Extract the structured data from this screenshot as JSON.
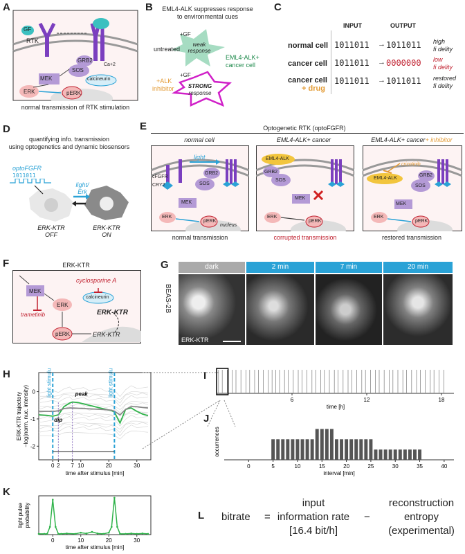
{
  "panels": {
    "A": {
      "letter": "A",
      "caption": "normal transmission of RTK stimulation",
      "labels": {
        "gf": "GF",
        "rtk": "RTK",
        "grb2": "GRB2",
        "sos": "SOS",
        "mek": "MEK",
        "erk": "ERK",
        "perk": "pERK",
        "calcineurin": "calcineurin",
        "ca": "Ca+2"
      }
    },
    "B": {
      "letter": "B",
      "title_line1": "EML4-ALK suppresses response",
      "title_line2": "to environmental cues",
      "untreated": "untreated",
      "plus_gf": "+GF",
      "weak_line1": "weak",
      "weak_line2": "response",
      "strong_line1": "STRONG",
      "strong_line2": "response",
      "cell_line1": "EML4-ALK+",
      "cell_line2": "cancer cell",
      "alk_line1": "+ALK",
      "alk_line2": "inhibitor"
    },
    "C": {
      "letter": "C",
      "input_header": "INPUT",
      "output_header": "OUTPUT",
      "rows": [
        {
          "label": "normal cell",
          "input": "1011011",
          "output": "1011011",
          "desc_line1": "high",
          "desc_line2": "fi delity"
        },
        {
          "label": "cancer cell",
          "input": "1011011",
          "output": "0000000",
          "desc_line1": "low",
          "desc_line2": "fi delity"
        },
        {
          "label": "cancer cell",
          "label2": "+ drug",
          "input": "1011011",
          "output": "1011011",
          "desc_line1": "restored",
          "desc_line2": "fi delity"
        }
      ]
    },
    "D": {
      "letter": "D",
      "title_line1": "quantifying info. transmission",
      "title_line2": "using optogenetics and dynamic biosensors",
      "opto": "optoFGFR",
      "bits": "1011011",
      "light_line1": "light/",
      "light_line2": "Erk",
      "off_line1": "ERK-KTR",
      "off_line2": "OFF",
      "on_line1": "ERK-KTR",
      "on_line2": "ON"
    },
    "E": {
      "letter": "E",
      "title": "Optogenetic RTK (optoFGFR)",
      "subpanels": [
        {
          "title": "normal cell",
          "caption": "normal transmission",
          "cfgfr": "cFGFR",
          "cry2": "CRY2",
          "light": "light",
          "grb2": "GRB2",
          "sos": "SOS",
          "mek": "MEK",
          "erk": "ERK",
          "perk": "pERK",
          "nucleus": "nucleus"
        },
        {
          "title": "EML4-ALK+ cancer",
          "caption": "corrupted transmission",
          "eml": "EML4-ALK",
          "grb2": "GRB2",
          "sos": "SOS",
          "mek": "MEK",
          "erk": "ERK",
          "perk": "pERK"
        },
        {
          "title_a": "EML4-ALK+ cancer",
          "title_b": "+ inhibitor",
          "caption": "restored transmission",
          "drug": "crizotinib",
          "eml": "EML4-ALK",
          "grb2": "GRB2",
          "sos": "SOS",
          "mek": "MEK",
          "erk": "ERK",
          "perk": "pERK"
        }
      ]
    },
    "F": {
      "letter": "F",
      "title": "ERK-KTR",
      "mek": "MEK",
      "erk": "ERK",
      "perk": "pERK",
      "calcineurin": "calcineurin",
      "cyclo": "cyclosporine A",
      "trametinib": "trametinib",
      "ktr1": "ERK-KTR",
      "ktr2": "ERK-KTR"
    },
    "G": {
      "letter": "G",
      "headers": [
        "dark",
        "2 min",
        "7 min",
        "20 min"
      ],
      "side": "BEAS-2B",
      "inset": "ERK-KTR"
    },
    "H": {
      "letter": "H",
      "ylabel_line1": "ERK-KTR trajectory",
      "ylabel_line2": "−log(norm. nuc. intensity)",
      "xlabel": "time after stimulus [min]",
      "stim1": "light stimulus",
      "stim2": "light stimulus",
      "peak": "peak",
      "dip": "dip"
    },
    "I": {
      "letter": "I",
      "xlabel": "time [h]"
    },
    "J": {
      "letter": "J",
      "ylabel": "occurrences",
      "xlabel": "interval [min]"
    },
    "K": {
      "letter": "K",
      "ylabel_line1": "light pulse",
      "ylabel_line2": "probability",
      "xlabel": "time after stimulus [min]"
    },
    "L": {
      "letter": "L",
      "bitrate": "bitrate",
      "equals": "=",
      "minus": "−",
      "term1_line1": "input",
      "term1_line2": "information rate",
      "term1_line3": "[16.4 bit/h]",
      "term2_line1": "reconstruction",
      "term2_line2": "entropy",
      "term2_line3": "(experimental)"
    }
  },
  "colors": {
    "accent_blue": "#2aa2d6",
    "accent_green": "#2fb34a",
    "accent_red": "#c0202f",
    "purple": "#7b3fbf",
    "magenta": "#d020c8"
  },
  "chart_data": [
    {
      "type": "line",
      "panel": "H",
      "x": [
        -5,
        -2,
        0,
        2,
        4,
        6,
        7,
        9,
        11,
        13,
        15,
        17,
        19,
        21,
        22,
        24,
        26,
        28,
        30,
        32,
        34
      ],
      "series": [
        {
          "name": "",
          "values": [
            -0.85,
            -0.87,
            -0.9,
            -0.85,
            -0.55,
            -0.42,
            -0.38,
            -0.4,
            -0.45,
            -0.5,
            -0.55,
            -0.6,
            -0.65,
            -0.7,
            -0.75,
            -1.15,
            -0.65,
            -0.6,
            -0.72,
            -0.82,
            -0.88
          ]
        },
        {
          "name": "",
          "values": [
            -0.72,
            -0.72,
            -0.73,
            -0.7,
            -0.62,
            -0.6,
            -0.6,
            -0.61,
            -0.62,
            -0.63,
            -0.64,
            -0.65,
            -0.66,
            -0.68,
            -0.72,
            -0.85,
            -0.65,
            -0.55,
            -0.55,
            -0.58,
            -0.6
          ]
        }
      ],
      "xticks": [
        "0",
        "2",
        "7",
        "10",
        "20",
        "30"
      ],
      "yticks": [
        "0",
        "-1",
        "-2"
      ],
      "xlim": [
        -5,
        35
      ],
      "ylim": [
        -2.5,
        0.7
      ]
    },
    {
      "type": "scatter",
      "panel": "I",
      "x_events": [
        0.1,
        0.4,
        0.8,
        1.2,
        1.5,
        1.9,
        2.3,
        2.6,
        3.0,
        3.3,
        3.7,
        4.1,
        4.4,
        4.7,
        5.0,
        5.4,
        5.7,
        6.1,
        6.5,
        6.8,
        7.2,
        7.6,
        7.9,
        8.3,
        8.6,
        9.0,
        9.4,
        9.7,
        10.1,
        10.5,
        10.8,
        11.2,
        11.6,
        11.9,
        12.3,
        12.7,
        13.0,
        13.4,
        13.8,
        14.1,
        14.5,
        14.9,
        15.2,
        15.6,
        16.0,
        16.3,
        16.7,
        17.1,
        17.4,
        17.8,
        18.2
      ],
      "xticks": [
        "6",
        "12",
        "18"
      ],
      "xlim": [
        0,
        19
      ]
    },
    {
      "type": "bar",
      "panel": "J",
      "categories": [
        5,
        6,
        7,
        8,
        9,
        10,
        11,
        12,
        13,
        14,
        15,
        16,
        17,
        18,
        19,
        20,
        21,
        22,
        23,
        24,
        25,
        26,
        27,
        28,
        29,
        30,
        31,
        32,
        33,
        34,
        35
      ],
      "values": [
        2,
        2,
        2,
        2,
        2,
        2,
        2,
        2,
        2,
        3,
        3,
        3,
        3,
        2,
        2,
        2,
        2,
        2,
        2,
        2,
        2,
        1,
        1,
        1,
        1,
        1,
        1,
        1,
        1,
        1,
        1
      ],
      "xticks": [
        "0",
        "5",
        "10",
        "15",
        "20",
        "25",
        "30",
        "35",
        "40"
      ],
      "xlim": [
        -5,
        42
      ],
      "ylim": [
        0,
        3.5
      ]
    },
    {
      "type": "line",
      "panel": "K",
      "x": [
        -5,
        -3,
        -2,
        -1,
        0,
        1,
        2,
        3,
        5,
        8,
        10,
        12,
        14,
        16,
        18,
        20,
        21,
        22,
        23,
        24,
        26,
        28,
        30,
        32,
        34
      ],
      "series": [
        {
          "name": "",
          "values": [
            0.02,
            0.02,
            0.02,
            0.2,
            0.9,
            0.2,
            0.02,
            0.02,
            0.03,
            0.02,
            0.05,
            0.03,
            0.07,
            0.03,
            0.02,
            0.05,
            0.2,
            0.95,
            0.2,
            0.02,
            0.02,
            0.03,
            0.02,
            0.03,
            0.02
          ]
        }
      ],
      "xticks": [
        "0",
        "10",
        "20",
        "30"
      ],
      "xlim": [
        -5,
        35
      ],
      "ylim": [
        0,
        1
      ]
    }
  ]
}
